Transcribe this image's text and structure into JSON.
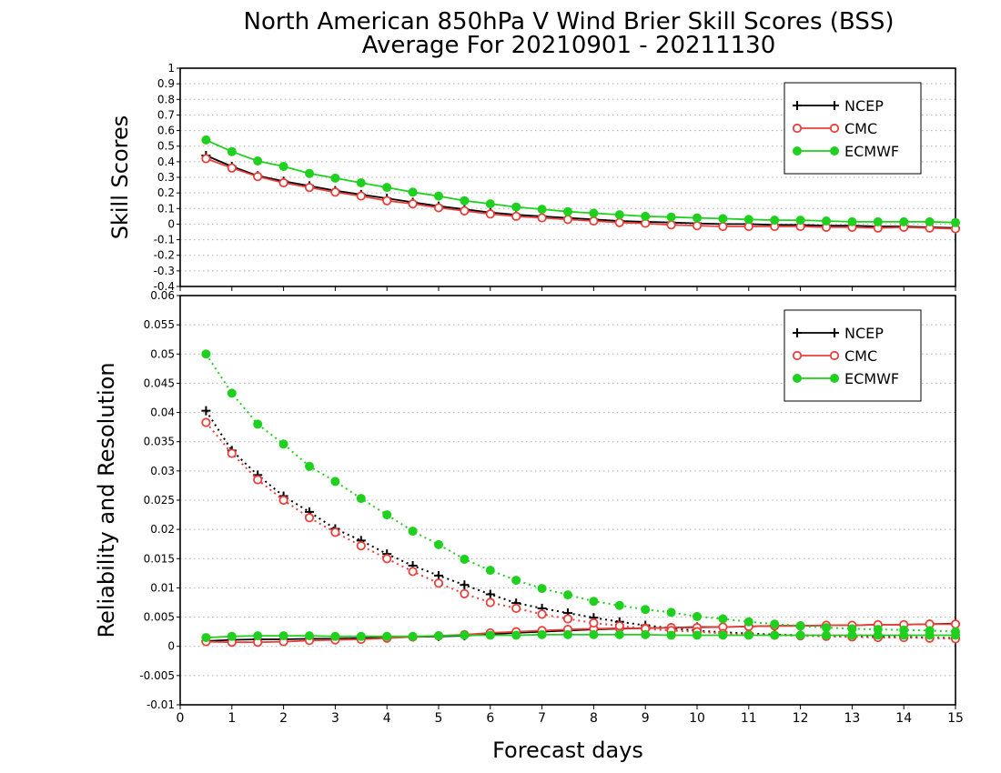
{
  "chart_data": [
    {
      "type": "line",
      "title": "North American 850hPa V Wind Brier Skill Scores (BSS)",
      "subtitle": "Average For 20210901 - 20211130",
      "ylabel": "Skill Scores",
      "xlabel": "Forecast days",
      "xlim": [
        0,
        15
      ],
      "ylim": [
        -0.4,
        1
      ],
      "x_ticks": [
        "0",
        "1",
        "2",
        "3",
        "4",
        "5",
        "6",
        "7",
        "8",
        "9",
        "10",
        "11",
        "12",
        "13",
        "14",
        "15"
      ],
      "y_ticks": [
        "-0.4",
        "-0.3",
        "-0.2",
        "-0.1",
        "0",
        "0.1",
        "0.2",
        "0.3",
        "0.4",
        "0.5",
        "0.6",
        "0.7",
        "0.8",
        "0.9",
        "1"
      ],
      "grid": true,
      "legend": "top-right",
      "x": [
        0.5,
        1,
        1.5,
        2,
        2.5,
        3,
        3.5,
        4,
        4.5,
        5,
        5.5,
        6,
        6.5,
        7,
        7.5,
        8,
        8.5,
        9,
        9.5,
        10,
        10.5,
        11,
        11.5,
        12,
        12.5,
        13,
        13.5,
        14,
        14.5,
        15
      ],
      "series": [
        {
          "name": "NCEP",
          "color": "#000000",
          "marker": "plus",
          "values": [
            0.44,
            0.37,
            0.31,
            0.275,
            0.245,
            0.215,
            0.19,
            0.165,
            0.14,
            0.115,
            0.095,
            0.075,
            0.06,
            0.05,
            0.04,
            0.03,
            0.02,
            0.015,
            0.01,
            0.005,
            0.0,
            0.0,
            -0.005,
            -0.005,
            -0.01,
            -0.01,
            -0.015,
            -0.015,
            -0.02,
            -0.025
          ]
        },
        {
          "name": "CMC",
          "color": "#e8413c",
          "marker": "open-circle",
          "values": [
            0.42,
            0.36,
            0.305,
            0.265,
            0.235,
            0.205,
            0.18,
            0.15,
            0.13,
            0.105,
            0.085,
            0.065,
            0.05,
            0.04,
            0.03,
            0.02,
            0.01,
            0.005,
            -0.005,
            -0.01,
            -0.015,
            -0.015,
            -0.015,
            -0.015,
            -0.02,
            -0.02,
            -0.025,
            -0.02,
            -0.025,
            -0.03
          ]
        },
        {
          "name": "ECMWF",
          "color": "#1fd01f",
          "marker": "filled-circle",
          "values": [
            0.54,
            0.465,
            0.405,
            0.37,
            0.325,
            0.295,
            0.265,
            0.235,
            0.205,
            0.18,
            0.15,
            0.13,
            0.11,
            0.095,
            0.08,
            0.07,
            0.06,
            0.05,
            0.045,
            0.04,
            0.035,
            0.03,
            0.025,
            0.025,
            0.02,
            0.015,
            0.015,
            0.015,
            0.015,
            0.01
          ]
        }
      ]
    },
    {
      "type": "line",
      "ylabel": "Reliability and Resolution",
      "xlabel": "Forecast days",
      "xlim": [
        0,
        15
      ],
      "ylim": [
        -0.01,
        0.06
      ],
      "x_ticks": [
        "0",
        "1",
        "2",
        "3",
        "4",
        "5",
        "6",
        "7",
        "8",
        "9",
        "10",
        "11",
        "12",
        "13",
        "14",
        "15"
      ],
      "y_ticks": [
        "-0.01",
        "-0.005",
        "0",
        "0.005",
        "0.01",
        "0.015",
        "0.02",
        "0.025",
        "0.03",
        "0.035",
        "0.04",
        "0.045",
        "0.05",
        "0.055",
        "0.06"
      ],
      "grid": true,
      "legend": "top-right",
      "x": [
        0.5,
        1,
        1.5,
        2,
        2.5,
        3,
        3.5,
        4,
        4.5,
        5,
        5.5,
        6,
        6.5,
        7,
        7.5,
        8,
        8.5,
        9,
        9.5,
        10,
        10.5,
        11,
        11.5,
        12,
        12.5,
        13,
        13.5,
        14,
        14.5,
        15
      ],
      "series": [
        {
          "name": "NCEP",
          "color": "#000000",
          "marker": "plus",
          "resolution": [
            0.0403,
            0.0335,
            0.0293,
            0.0257,
            0.023,
            0.0201,
            0.0181,
            0.0158,
            0.0138,
            0.0121,
            0.0105,
            0.0089,
            0.0074,
            0.0065,
            0.0057,
            0.0049,
            0.0042,
            0.0036,
            0.0031,
            0.0027,
            0.0024,
            0.0022,
            0.002,
            0.0019,
            0.0018,
            0.0017,
            0.0016,
            0.0016,
            0.0015,
            0.0014
          ],
          "reliability": [
            0.0009,
            0.0011,
            0.0012,
            0.0012,
            0.0013,
            0.0013,
            0.0014,
            0.0015,
            0.0016,
            0.0017,
            0.0018,
            0.0021,
            0.0023,
            0.0025,
            0.0027,
            0.0029,
            0.003,
            0.0031,
            0.0032,
            0.0033,
            0.0033,
            0.0034,
            0.0035,
            0.0035,
            0.0036,
            0.0036,
            0.0037,
            0.0037,
            0.0038,
            0.0039
          ]
        },
        {
          "name": "CMC",
          "color": "#e8413c",
          "marker": "open-circle",
          "resolution": [
            0.0383,
            0.033,
            0.0285,
            0.025,
            0.022,
            0.0195,
            0.0172,
            0.015,
            0.0128,
            0.0108,
            0.009,
            0.0075,
            0.0065,
            0.0055,
            0.0047,
            0.004,
            0.0035,
            0.003,
            0.0027,
            0.0025,
            0.0022,
            0.002,
            0.0019,
            0.0018,
            0.0017,
            0.0016,
            0.0015,
            0.0015,
            0.0014,
            0.0013
          ],
          "reliability": [
            0.0008,
            0.0007,
            0.0007,
            0.0008,
            0.001,
            0.0011,
            0.0012,
            0.0014,
            0.0016,
            0.0018,
            0.002,
            0.0023,
            0.0025,
            0.0027,
            0.0029,
            0.003,
            0.0031,
            0.0031,
            0.0032,
            0.0032,
            0.0033,
            0.0034,
            0.0035,
            0.0035,
            0.0036,
            0.0036,
            0.0037,
            0.0037,
            0.0038,
            0.0038
          ]
        },
        {
          "name": "ECMWF",
          "color": "#1fd01f",
          "marker": "filled-circle",
          "resolution": [
            0.05,
            0.0433,
            0.038,
            0.0346,
            0.0308,
            0.0282,
            0.0253,
            0.0225,
            0.0197,
            0.0174,
            0.0149,
            0.013,
            0.0113,
            0.0099,
            0.0088,
            0.0077,
            0.007,
            0.0063,
            0.0058,
            0.0051,
            0.0047,
            0.0042,
            0.0038,
            0.0035,
            0.0032,
            0.003,
            0.0029,
            0.0028,
            0.0027,
            0.0025
          ],
          "reliability": [
            0.0015,
            0.0017,
            0.0018,
            0.0018,
            0.0018,
            0.0017,
            0.0017,
            0.0017,
            0.0017,
            0.0018,
            0.0019,
            0.0019,
            0.0019,
            0.002,
            0.002,
            0.002,
            0.002,
            0.002,
            0.0019,
            0.0019,
            0.0019,
            0.0019,
            0.0019,
            0.0019,
            0.0019,
            0.0019,
            0.0019,
            0.0019,
            0.0019,
            0.0019
          ]
        }
      ]
    }
  ]
}
